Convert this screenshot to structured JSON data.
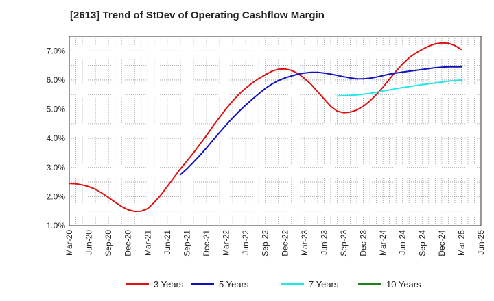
{
  "chart_data": {
    "type": "line",
    "title": "[2613]  Trend of StDev of Operating Cashflow Margin",
    "xlabel": "",
    "ylabel": "",
    "ylim": [
      1.0,
      7.5
    ],
    "y_ticks": [
      "1.0%",
      "2.0%",
      "3.0%",
      "4.0%",
      "5.0%",
      "6.0%",
      "7.0%"
    ],
    "x_tick_labels": [
      "Mar-20",
      "Jun-20",
      "Sep-20",
      "Dec-20",
      "Mar-21",
      "Jun-21",
      "Sep-21",
      "Dec-21",
      "Mar-22",
      "Jun-22",
      "Sep-22",
      "Dec-22",
      "Mar-23",
      "Jun-23",
      "Sep-23",
      "Dec-23",
      "Mar-24",
      "Jun-24",
      "Sep-24",
      "Dec-24",
      "Mar-25",
      "Jun-25"
    ],
    "grid": true,
    "legend_position": "bottom",
    "series": [
      {
        "name": "3 Years",
        "color": "#e01010",
        "x": [
          "Mar-20",
          "Apr-20",
          "May-20",
          "Jun-20",
          "Jul-20",
          "Aug-20",
          "Sep-20",
          "Oct-20",
          "Nov-20",
          "Dec-20",
          "Jan-21",
          "Feb-21",
          "Mar-21",
          "Apr-21",
          "May-21",
          "Jun-21",
          "Jul-21",
          "Aug-21",
          "Sep-21",
          "Oct-21",
          "Nov-21",
          "Dec-21",
          "Jan-22",
          "Feb-22",
          "Mar-22",
          "Apr-22",
          "May-22",
          "Jun-22",
          "Jul-22",
          "Aug-22",
          "Sep-22",
          "Oct-22",
          "Nov-22",
          "Dec-22",
          "Jan-23",
          "Feb-23",
          "Mar-23",
          "Apr-23",
          "May-23",
          "Jun-23",
          "Jul-23",
          "Aug-23",
          "Sep-23",
          "Oct-23",
          "Nov-23",
          "Dec-23",
          "Jan-24",
          "Feb-24",
          "Mar-24",
          "Apr-24",
          "May-24",
          "Jun-24",
          "Jul-24",
          "Aug-24",
          "Sep-24",
          "Oct-24",
          "Nov-24",
          "Dec-24",
          "Jan-25",
          "Feb-25",
          "Mar-25"
        ],
        "values": [
          2.45,
          2.44,
          2.4,
          2.34,
          2.25,
          2.12,
          1.97,
          1.81,
          1.66,
          1.55,
          1.49,
          1.5,
          1.59,
          1.8,
          2.05,
          2.35,
          2.65,
          2.95,
          3.22,
          3.5,
          3.8,
          4.1,
          4.42,
          4.72,
          5.02,
          5.28,
          5.52,
          5.72,
          5.9,
          6.05,
          6.18,
          6.3,
          6.37,
          6.38,
          6.33,
          6.22,
          6.05,
          5.85,
          5.6,
          5.35,
          5.1,
          4.93,
          4.88,
          4.9,
          4.97,
          5.1,
          5.28,
          5.5,
          5.75,
          6.03,
          6.3,
          6.55,
          6.76,
          6.92,
          7.05,
          7.16,
          7.24,
          7.27,
          7.26,
          7.18,
          7.05
        ]
      },
      {
        "name": "5 Years",
        "color": "#1010c0",
        "x": [
          "Aug-21",
          "Sep-21",
          "Oct-21",
          "Nov-21",
          "Dec-21",
          "Jan-22",
          "Feb-22",
          "Mar-22",
          "Apr-22",
          "May-22",
          "Jun-22",
          "Jul-22",
          "Aug-22",
          "Sep-22",
          "Oct-22",
          "Nov-22",
          "Dec-22",
          "Jan-23",
          "Feb-23",
          "Mar-23",
          "Apr-23",
          "May-23",
          "Jun-23",
          "Jul-23",
          "Aug-23",
          "Sep-23",
          "Oct-23",
          "Nov-23",
          "Dec-23",
          "Jan-24",
          "Feb-24",
          "Mar-24",
          "Apr-24",
          "May-24",
          "Jun-24",
          "Jul-24",
          "Aug-24",
          "Sep-24",
          "Oct-24",
          "Nov-24",
          "Dec-24",
          "Jan-25",
          "Feb-25",
          "Mar-25"
        ],
        "values": [
          2.75,
          2.95,
          3.18,
          3.42,
          3.67,
          3.94,
          4.2,
          4.46,
          4.7,
          4.93,
          5.14,
          5.34,
          5.53,
          5.71,
          5.86,
          5.98,
          6.07,
          6.14,
          6.2,
          6.24,
          6.26,
          6.26,
          6.24,
          6.2,
          6.16,
          6.11,
          6.07,
          6.04,
          6.04,
          6.06,
          6.1,
          6.15,
          6.2,
          6.24,
          6.27,
          6.3,
          6.33,
          6.36,
          6.39,
          6.42,
          6.44,
          6.45,
          6.45,
          6.45
        ]
      },
      {
        "name": "7 Years",
        "color": "#20e8e8",
        "x": [
          "Aug-23",
          "Sep-23",
          "Oct-23",
          "Nov-23",
          "Dec-23",
          "Jan-24",
          "Feb-24",
          "Mar-24",
          "Apr-24",
          "May-24",
          "Jun-24",
          "Jul-24",
          "Aug-24",
          "Sep-24",
          "Oct-24",
          "Nov-24",
          "Dec-24",
          "Jan-25",
          "Feb-25",
          "Mar-25"
        ],
        "values": [
          5.45,
          5.46,
          5.47,
          5.49,
          5.51,
          5.54,
          5.58,
          5.62,
          5.66,
          5.7,
          5.74,
          5.77,
          5.81,
          5.84,
          5.87,
          5.9,
          5.93,
          5.96,
          5.98,
          6.0
        ]
      },
      {
        "name": "10 Years",
        "color": "#208020",
        "x": [],
        "values": []
      }
    ]
  }
}
